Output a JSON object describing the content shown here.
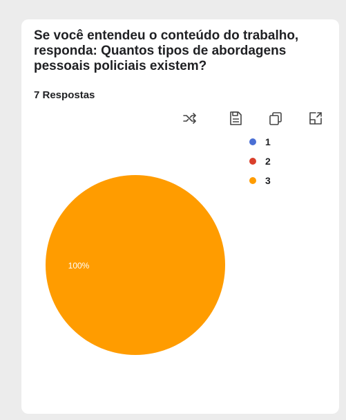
{
  "question": {
    "title": "Se você entendeu o conteúdo do trabalho, responda: Quantos tipos de abordagens pessoais policiais existem?",
    "response_count": "7 Respostas"
  },
  "toolbar": {
    "icons": [
      "shuffle-icon",
      "save-icon",
      "copy-icon",
      "expand-icon"
    ]
  },
  "legend": {
    "items": [
      {
        "label": "1",
        "color": "#4a6fd4"
      },
      {
        "label": "2",
        "color": "#d93f2b"
      },
      {
        "label": "3",
        "color": "#ff9c00"
      }
    ]
  },
  "chart_data": {
    "type": "pie",
    "categories": [
      "1",
      "2",
      "3"
    ],
    "values": [
      0,
      0,
      100
    ],
    "colors": [
      "#4a6fd4",
      "#d93f2b",
      "#ff9c00"
    ],
    "data_labels": [
      "",
      "",
      "100%"
    ],
    "legend_position": "top-right"
  }
}
